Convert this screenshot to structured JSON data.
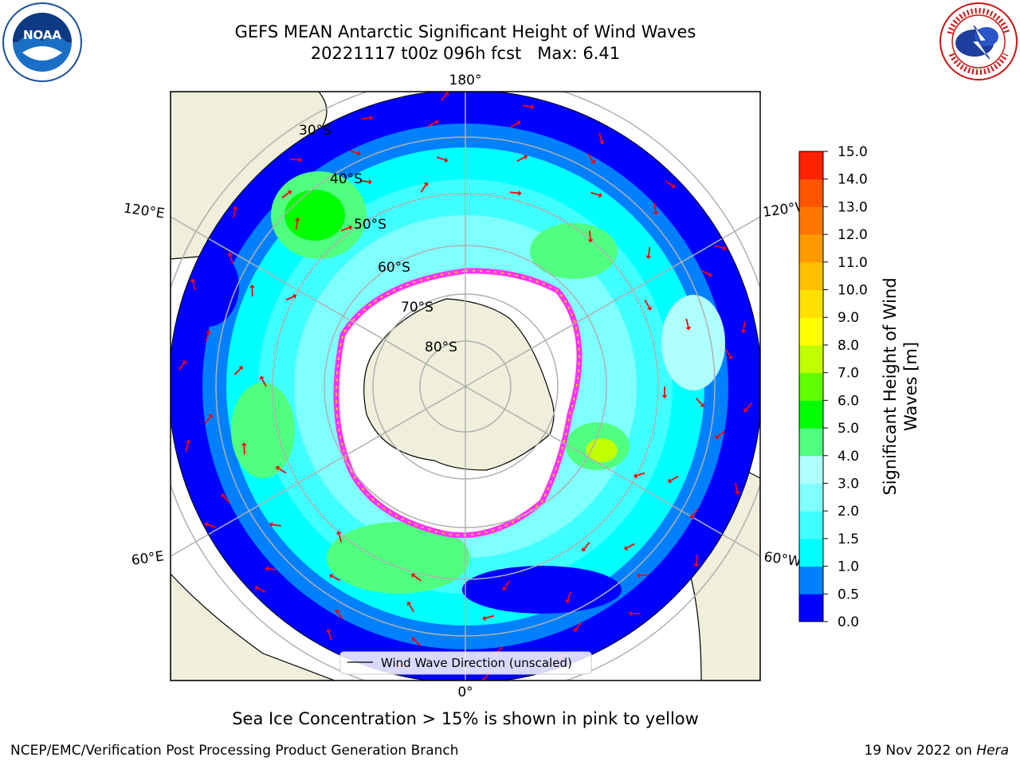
{
  "title_line1": "GEFS MEAN Antarctic Significant Height of Wind Waves",
  "title_line2": "20221117 t00z 096h fcst   Max: 6.41",
  "note": "Sea Ice Concentration > 15% is shown in pink to yellow",
  "footer_left": "NCEP/EMC/Verification Post Processing Product Generation Branch",
  "footer_right_prefix": "19 Nov 2022 on ",
  "footer_right_host": "Hera",
  "legend_label": "Wind Wave Direction (unscaled)",
  "logos": {
    "left": "NOAA",
    "right": "NATIONAL WEATHER SERVICE"
  },
  "map": {
    "projection": "south-polar-stereographic",
    "lat_labels": [
      "30°S",
      "40°S",
      "50°S",
      "60°S",
      "70°S",
      "80°S"
    ],
    "lon_labels": {
      "top": "180°",
      "bottom": "0°",
      "upper_left": "120°E",
      "lower_left": "60°E",
      "upper_right": "120°W",
      "lower_right": "60°W"
    },
    "colors": {
      "ocean_low": "#0000ff",
      "land": "#efefdb",
      "ice_edge": "#ff33ff",
      "arrow": "#ff0000",
      "grid": "#b0b0b0"
    }
  },
  "colorbar": {
    "label_line1": "Significant Height of Wind",
    "label_line2": "Waves [m]",
    "ticks": [
      "0.0",
      "0.5",
      "1.0",
      "1.5",
      "2.0",
      "3.0",
      "4.0",
      "5.0",
      "6.0",
      "7.0",
      "8.0",
      "9.0",
      "10.0",
      "11.0",
      "12.0",
      "13.0",
      "14.0",
      "15.0"
    ],
    "colors": [
      "#0000ff",
      "#0080ff",
      "#00ffff",
      "#40ffff",
      "#80ffff",
      "#b0ffff",
      "#50ff80",
      "#00ff00",
      "#60ff00",
      "#c0ff00",
      "#ffff00",
      "#ffe000",
      "#ffc000",
      "#ff9900",
      "#ff7700",
      "#ff5500",
      "#ff2200"
    ]
  }
}
